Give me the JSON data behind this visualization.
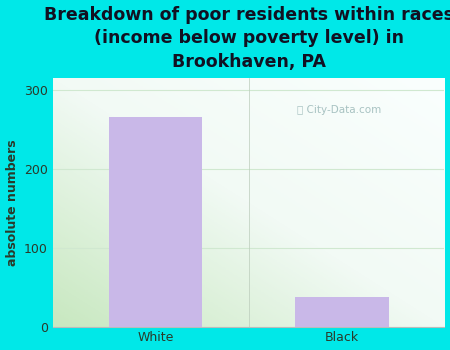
{
  "categories": [
    "White",
    "Black"
  ],
  "values": [
    265,
    38
  ],
  "bar_color": "#c9b8e8",
  "title": "Breakdown of poor residents within races\n(income below poverty level) in\nBrookhaven, PA",
  "ylabel": "absolute numbers",
  "yticks": [
    0,
    100,
    200,
    300
  ],
  "ylim": [
    0,
    315
  ],
  "xlim": [
    -0.55,
    1.55
  ],
  "background_color": "#00e8e8",
  "plot_bg_left": "#d4edcc",
  "plot_bg_right": "#f0f8f5",
  "plot_bg_top": "#f5faf8",
  "plot_bg_bottom": "#d8f0cc",
  "title_fontsize": 12.5,
  "axis_label_fontsize": 9,
  "tick_fontsize": 9,
  "watermark": "City-Data.com",
  "title_color": "#111122",
  "tick_color": "#2a3a2a",
  "ylabel_color": "#2a3a2a",
  "grid_color": "#d0e8d0",
  "bar_width": 0.5
}
